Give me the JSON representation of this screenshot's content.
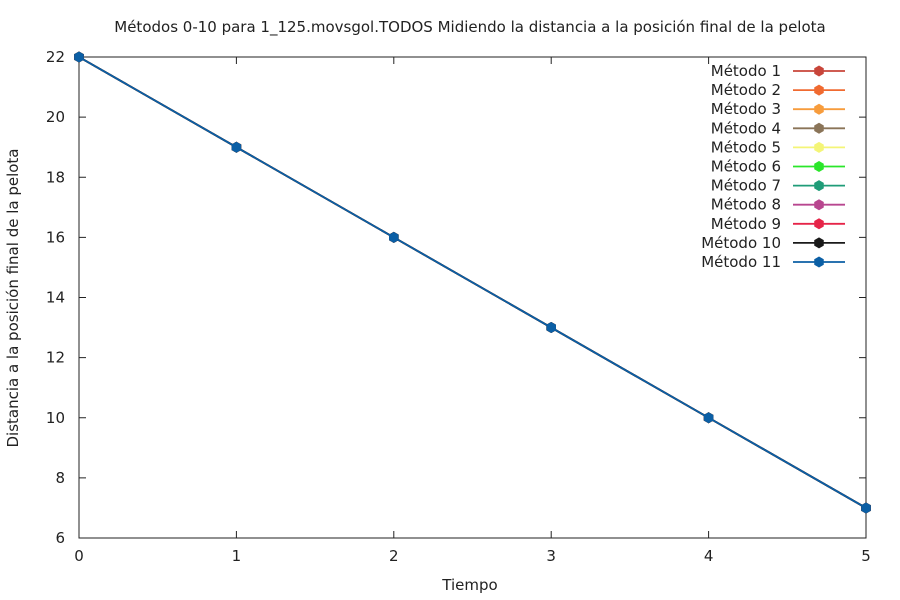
{
  "chart_data": {
    "type": "line",
    "title": "Métodos 0-10 para 1_125.movsgol.TODOS Midiendo la distancia a la posición final de la pelota",
    "xlabel": "Tiempo",
    "ylabel": "Distancia a la posición final de la pelota",
    "xlim": [
      0,
      5
    ],
    "ylim": [
      6,
      22
    ],
    "xticks": [
      "0",
      "1",
      "2",
      "3",
      "4",
      "5"
    ],
    "yticks": [
      "6",
      "8",
      "10",
      "12",
      "14",
      "16",
      "18",
      "20",
      "22"
    ],
    "grid": false,
    "legend_position": "top-right",
    "x": [
      0,
      1,
      2,
      3,
      4,
      5
    ],
    "series": [
      {
        "name": "Método 1",
        "color": "#c8453a",
        "values": [
          22,
          19,
          16,
          13,
          10,
          7
        ]
      },
      {
        "name": "Método 2",
        "color": "#f06a30",
        "values": [
          22,
          19,
          16,
          13,
          10,
          7
        ]
      },
      {
        "name": "Método 3",
        "color": "#f79c3c",
        "values": [
          22,
          19,
          16,
          13,
          10,
          7
        ]
      },
      {
        "name": "Método 4",
        "color": "#8a7458",
        "values": [
          22,
          19,
          16,
          13,
          10,
          7
        ]
      },
      {
        "name": "Método 5",
        "color": "#f4f577",
        "values": [
          22,
          19,
          16,
          13,
          10,
          7
        ]
      },
      {
        "name": "Método 6",
        "color": "#2ae62a",
        "values": [
          22,
          19,
          16,
          13,
          10,
          7
        ]
      },
      {
        "name": "Método 7",
        "color": "#1f9c78",
        "values": [
          22,
          19,
          16,
          13,
          10,
          7
        ]
      },
      {
        "name": "Método 8",
        "color": "#b8468f",
        "values": [
          22,
          19,
          16,
          13,
          10,
          7
        ]
      },
      {
        "name": "Método 9",
        "color": "#e62448",
        "values": [
          22,
          19,
          16,
          13,
          10,
          7
        ]
      },
      {
        "name": "Método 10",
        "color": "#1a1a1a",
        "values": [
          22,
          19,
          16,
          13,
          10,
          7
        ]
      },
      {
        "name": "Método 11",
        "color": "#0b5fa5",
        "values": [
          22,
          19,
          16,
          13,
          10,
          7
        ]
      }
    ]
  }
}
